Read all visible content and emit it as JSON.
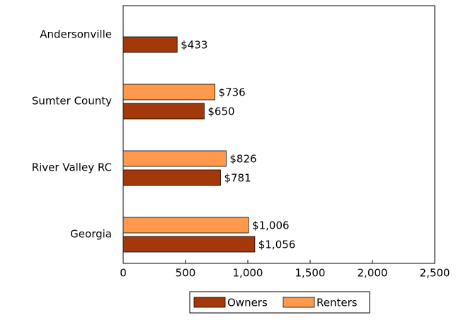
{
  "chart_data": {
    "type": "bar",
    "orientation": "horizontal",
    "categories": [
      "Andersonville",
      "Sumter County",
      "River Valley RC",
      "Georgia"
    ],
    "series": [
      {
        "name": "Owners",
        "color": "#a3390b",
        "values": [
          433,
          650,
          781,
          1056
        ],
        "value_labels": [
          "$433",
          "$650",
          "$781",
          "$1,056"
        ]
      },
      {
        "name": "Renters",
        "color": "#ff9a4d",
        "values": [
          null,
          736,
          826,
          1006
        ],
        "value_labels": [
          null,
          "$736",
          "$826",
          "$1,006"
        ]
      }
    ],
    "xlim": [
      0,
      2500
    ],
    "xticks": [
      0,
      500,
      {
        "value": 1000,
        "label": "1,000"
      },
      {
        "value": 1500,
        "label": "1,500"
      },
      {
        "value": 2000,
        "label": "2,000"
      },
      {
        "value": 2500,
        "label": "2,500"
      }
    ],
    "legend": "bottom"
  }
}
